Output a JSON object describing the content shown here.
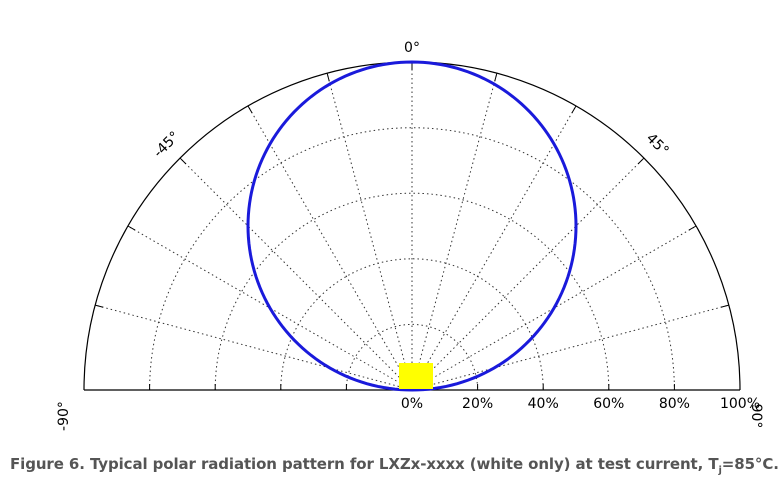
{
  "chart_data": {
    "type": "polar",
    "angle_unit": "degrees",
    "angle_range": [
      -90,
      90
    ],
    "angle_tick_labels": [
      {
        "angle": 0,
        "label": "0°"
      },
      {
        "angle": -45,
        "label": "-45°"
      },
      {
        "angle": 45,
        "label": "45°"
      },
      {
        "angle": -90,
        "label": "-90°"
      },
      {
        "angle": 90,
        "label": "90°"
      }
    ],
    "angular_gridlines": [
      -75,
      -60,
      -45,
      -30,
      -15,
      0,
      15,
      30,
      45,
      60,
      75
    ],
    "radial_range": [
      0,
      100
    ],
    "radial_ticks": [
      0,
      20,
      40,
      60,
      80,
      100
    ],
    "radial_tick_labels": [
      "0%",
      "20%",
      "40%",
      "60%",
      "80%",
      "100%"
    ],
    "grid": true,
    "grid_style": "dotted",
    "series": [
      {
        "pattern": "lambertian",
        "color": "#1a1adb",
        "angles": [
          -90,
          -75,
          -60,
          -45,
          -30,
          -15,
          0,
          15,
          30,
          45,
          60,
          75,
          90
        ],
        "values": [
          0,
          26,
          50,
          71,
          87,
          97,
          100,
          97,
          87,
          71,
          50,
          26,
          0
        ]
      }
    ],
    "marker": {
      "shape": "square",
      "color": "#ffff00",
      "position": "center"
    }
  },
  "caption": {
    "text_before": "Figure 6. Typical polar radiation pattern for LXZx-xxxx (white only) at test current, T",
    "subscript": "j",
    "text_after": "=85°C."
  }
}
